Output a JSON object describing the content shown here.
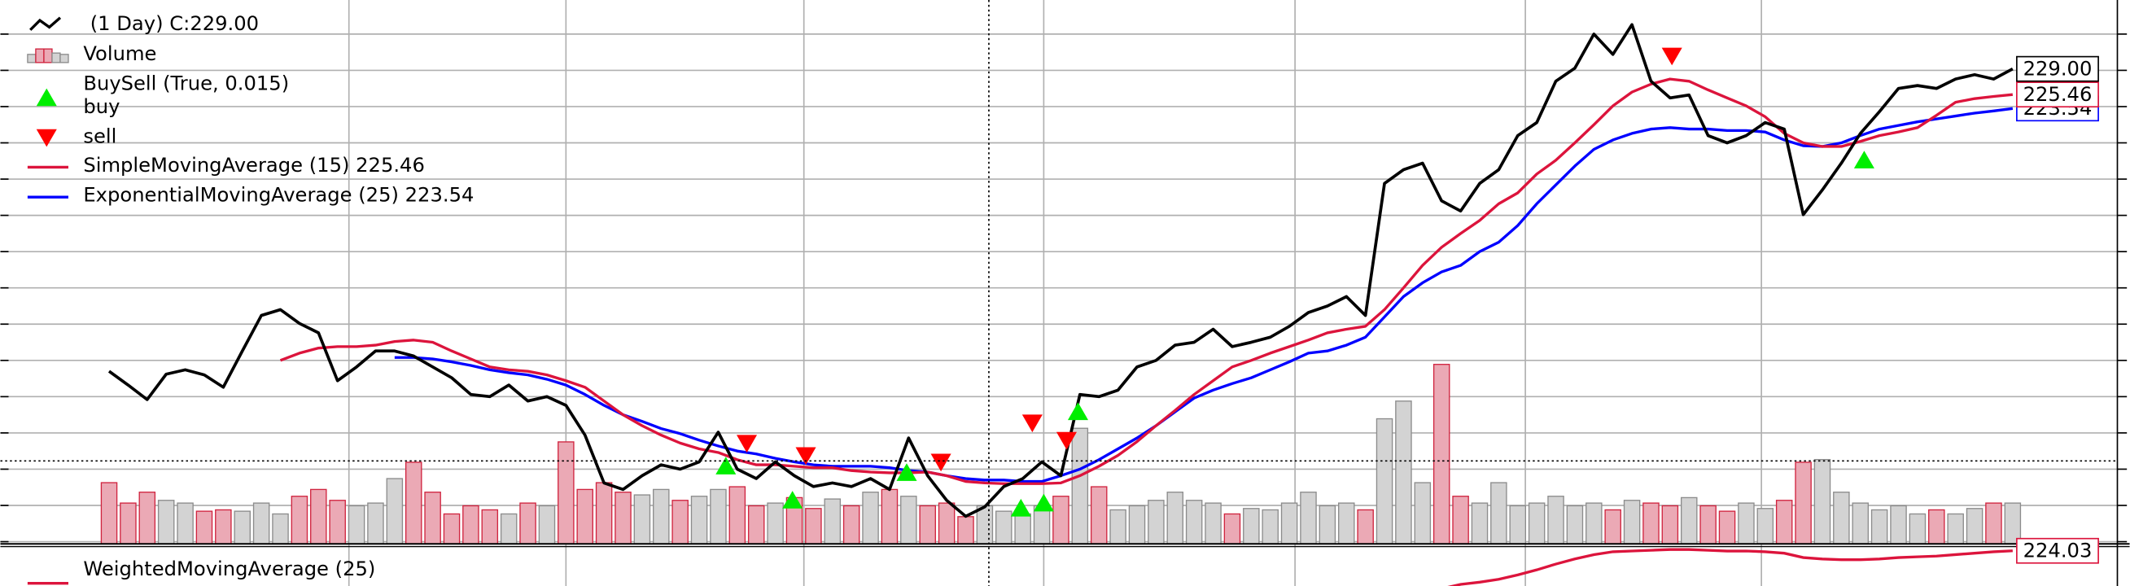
{
  "chart_data": {
    "type": "line",
    "xlim": [
      -5.71,
      105.5
    ],
    "ylim": [
      163.5,
      238.5
    ],
    "yticks": [
      233.8,
      228.8,
      223.8,
      218.8,
      213.8,
      208.8,
      203.8,
      198.8,
      193.8,
      188.8,
      183.8,
      178.8,
      173.8,
      168.8,
      163.8
    ],
    "xticks": [
      12.6,
      24,
      36.5,
      49.1,
      62.3,
      74.4,
      86.8
    ],
    "grid": true,
    "series": [
      {
        "name": "(1 Day) C:229.00",
        "color": "#000000",
        "last_label": "229.00",
        "values": [
          187.3,
          185.4,
          183.4,
          186.9,
          187.5,
          186.8,
          185.1,
          190.1,
          195.0,
          195.8,
          193.9,
          192.6,
          186.0,
          187.9,
          190.1,
          190.1,
          189.4,
          187.9,
          186.4,
          184.1,
          183.8,
          185.4,
          183.2,
          183.8,
          182.6,
          178.5,
          171.9,
          171.0,
          172.9,
          174.4,
          173.8,
          174.8,
          178.9,
          173.8,
          172.5,
          174.8,
          172.9,
          171.4,
          171.9,
          171.4,
          172.5,
          171.0,
          178.1,
          172.9,
          169.5,
          167.3,
          168.6,
          171.4,
          172.5,
          174.8,
          172.9,
          184.1,
          183.8,
          184.7,
          187.9,
          188.8,
          190.9,
          191.3,
          193.1,
          190.7,
          191.3,
          192.0,
          193.5,
          195.4,
          196.3,
          197.6,
          195.0,
          213.2,
          215.1,
          216.0,
          210.8,
          209.4,
          213.2,
          215.1,
          219.8,
          221.6,
          227.3,
          229.1,
          233.8,
          231.0,
          235.1,
          227.3,
          225.0,
          225.4,
          219.8,
          218.8,
          219.8,
          221.6,
          220.7,
          208.9,
          212.3,
          216.0,
          220.1,
          223.1,
          226.3,
          226.7,
          226.3,
          227.6,
          228.2,
          227.6,
          229.0
        ]
      },
      {
        "name": "SimpleMovingAverage (15) 225.46",
        "color": "#dc143c",
        "last_label": "225.46",
        "values": [
          null,
          null,
          null,
          null,
          null,
          null,
          null,
          null,
          null,
          188.8,
          189.8,
          190.5,
          190.7,
          190.7,
          190.9,
          191.4,
          191.6,
          191.3,
          190.1,
          189.0,
          187.9,
          187.5,
          187.3,
          186.8,
          186.0,
          185.1,
          183.2,
          181.3,
          179.8,
          178.5,
          177.4,
          176.6,
          176.1,
          175.1,
          174.4,
          174.4,
          174.2,
          174.0,
          174.0,
          173.6,
          173.4,
          173.3,
          173.3,
          173.4,
          172.9,
          172.1,
          171.9,
          171.8,
          171.8,
          171.8,
          171.9,
          172.9,
          174.2,
          175.7,
          177.6,
          179.8,
          181.9,
          184.1,
          186.0,
          187.9,
          188.8,
          189.8,
          190.7,
          191.6,
          192.6,
          193.1,
          193.5,
          195.8,
          198.8,
          201.9,
          204.4,
          206.3,
          208.1,
          210.4,
          211.9,
          214.5,
          216.4,
          218.8,
          221.3,
          223.9,
          225.8,
          226.9,
          227.6,
          227.3,
          226.1,
          225.0,
          223.9,
          222.4,
          220.1,
          218.8,
          218.3,
          218.3,
          219.0,
          219.8,
          220.3,
          220.9,
          222.6,
          224.4,
          224.9,
          225.2,
          225.46
        ]
      },
      {
        "name": "ExponentialMovingAverage (25) 223.54",
        "color": "#0000ff",
        "last_label": "223.54",
        "values": [
          null,
          null,
          null,
          null,
          null,
          null,
          null,
          null,
          null,
          null,
          null,
          null,
          null,
          null,
          null,
          189.2,
          189.2,
          189.0,
          188.6,
          188.1,
          187.5,
          187.1,
          186.8,
          186.2,
          185.4,
          184.1,
          182.6,
          181.3,
          180.4,
          179.4,
          178.7,
          177.8,
          177.0,
          176.3,
          175.9,
          175.3,
          174.8,
          174.4,
          174.2,
          174.2,
          174.2,
          174.0,
          173.6,
          173.4,
          172.9,
          172.5,
          172.3,
          172.3,
          172.1,
          172.1,
          172.9,
          173.8,
          175.1,
          176.6,
          178.1,
          179.8,
          181.7,
          183.6,
          184.7,
          185.6,
          186.4,
          187.5,
          188.6,
          189.8,
          190.1,
          190.9,
          192.0,
          194.8,
          197.6,
          199.5,
          201.0,
          201.9,
          203.8,
          205.1,
          207.4,
          210.4,
          213.0,
          215.6,
          217.9,
          219.2,
          220.1,
          220.7,
          220.9,
          220.7,
          220.7,
          220.5,
          220.5,
          220.3,
          219.2,
          218.4,
          218.3,
          218.8,
          219.8,
          220.7,
          221.2,
          221.7,
          222.1,
          222.5,
          222.9,
          223.2,
          223.54
        ]
      }
    ],
    "volume": {
      "name": "Volume",
      "ylim": [
        0,
        400
      ],
      "up_color": "#d3d3d3",
      "up_edge": "#8c8c8c",
      "down_color": "#eba9b5",
      "down_edge": "#d0243f",
      "values": [
        45,
        30,
        38,
        32,
        30,
        24,
        25,
        24,
        30,
        22,
        35,
        40,
        32,
        28,
        30,
        48,
        60,
        38,
        22,
        28,
        25,
        22,
        30,
        28,
        75,
        40,
        45,
        38,
        36,
        40,
        32,
        35,
        40,
        42,
        28,
        30,
        34,
        26,
        33,
        28,
        38,
        40,
        35,
        28,
        30,
        20,
        28,
        24,
        22,
        28,
        35,
        85,
        42,
        25,
        28,
        32,
        38,
        32,
        30,
        22,
        26,
        25,
        30,
        38,
        28,
        30,
        25,
        92,
        105,
        45,
        132,
        35,
        30,
        45,
        28,
        30,
        35,
        28,
        30,
        25,
        32,
        30,
        28,
        34,
        28,
        24,
        30,
        26,
        32,
        60,
        62,
        38,
        30,
        25,
        28,
        22,
        25,
        22,
        26,
        30,
        30
      ]
    },
    "buysell": {
      "name": "BuySell (True, 0.015)",
      "buy": {
        "name": "buy",
        "color": "#00ee00",
        "x": [
          32.4,
          35.9,
          41.9,
          47.9,
          49.1,
          50.9,
          92.2
        ],
        "values": [
          174.2,
          169.5,
          173.3,
          168.4,
          169.1,
          181.7,
          216.4
        ]
      },
      "sell": {
        "name": "sell",
        "color": "#ff0000",
        "x": [
          33.5,
          36.6,
          43.7,
          48.5,
          50.3,
          82.1
        ],
        "values": [
          177.4,
          175.7,
          174.8,
          180.2,
          177.8,
          230.8
        ]
      }
    },
    "wma": {
      "name": "WeightedMovingAverage (25)",
      "color": "#dc143c",
      "last_label": "224.03",
      "ylim": [
        217.3,
        224.8
      ],
      "values": [
        null,
        null,
        null,
        null,
        null,
        null,
        null,
        null,
        null,
        null,
        null,
        null,
        null,
        null,
        null,
        null,
        null,
        null,
        null,
        null,
        null,
        null,
        null,
        null,
        null,
        null,
        null,
        null,
        null,
        null,
        null,
        null,
        null,
        null,
        null,
        null,
        null,
        null,
        null,
        null,
        null,
        null,
        null,
        null,
        null,
        null,
        null,
        null,
        null,
        null,
        null,
        null,
        null,
        null,
        null,
        null,
        null,
        null,
        null,
        null,
        null,
        null,
        null,
        null,
        null,
        null,
        null,
        null,
        null,
        null,
        218.8,
        219.4,
        219.7,
        220.1,
        220.7,
        221.4,
        222.2,
        222.9,
        223.5,
        223.9,
        224.0,
        224.1,
        224.2,
        224.2,
        224.1,
        224.0,
        224.0,
        223.9,
        223.7,
        223.1,
        222.9,
        222.8,
        222.8,
        222.9,
        223.1,
        223.2,
        223.3,
        223.5,
        223.7,
        223.9,
        224.03
      ]
    }
  }
}
